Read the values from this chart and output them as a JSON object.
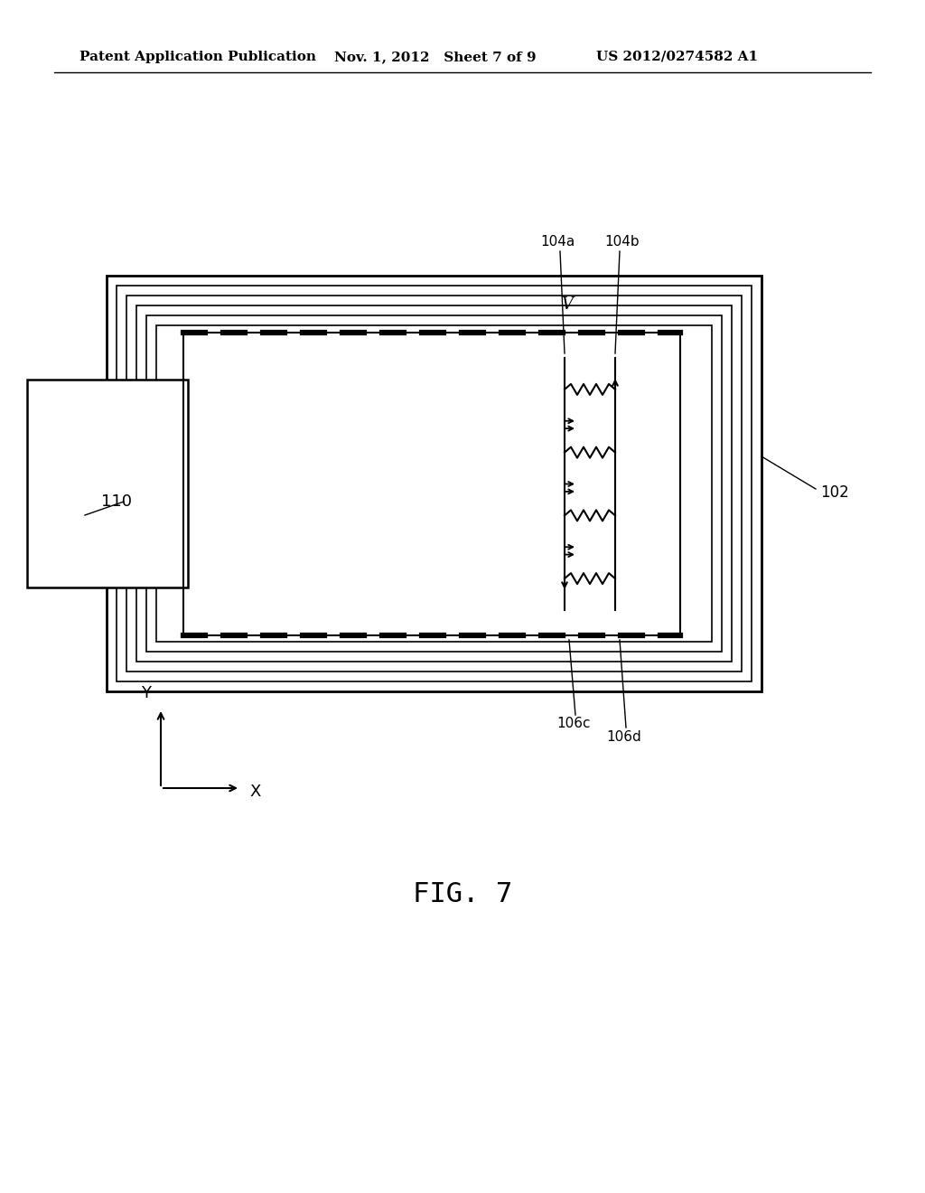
{
  "bg_color": "#ffffff",
  "line_color": "#000000",
  "header_left": "Patent Application Publication",
  "header_mid": "Nov. 1, 2012   Sheet 7 of 9",
  "header_right": "US 2012/0274582 A1",
  "fig_label": "FIG. 7",
  "label_102": "102",
  "label_106c": "106c",
  "label_106d": "106d",
  "label_104a": "104a",
  "label_104b": "104b",
  "label_110": "110",
  "label_V": "V",
  "label_X": "X",
  "label_Y": "Y"
}
